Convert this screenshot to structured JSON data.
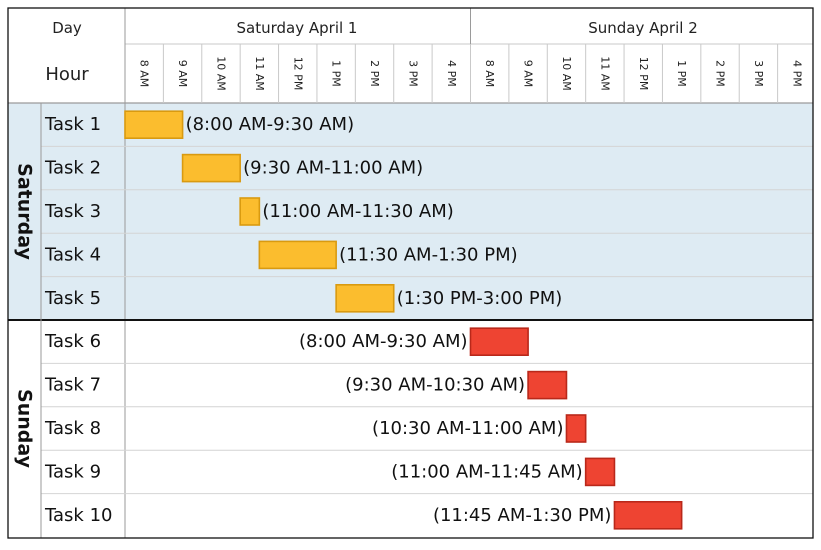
{
  "colors": {
    "saturday_bar": "#fbbd2e",
    "saturday_bar_border": "#d99a10",
    "sunday_bar": "#ee4432",
    "sunday_bar_border": "#b9281a",
    "saturday_band": "#deebf3",
    "grid": "#c9c9c9"
  },
  "chart_data": {
    "type": "bar",
    "header": {
      "day_label": "Day",
      "hour_label": "Hour",
      "days": [
        "Saturday April 1",
        "Sunday April 2"
      ],
      "hour_ticks": [
        "8 AM",
        "9 AM",
        "10 AM",
        "11 AM",
        "12 PM",
        "1 PM",
        "2 PM",
        "3 PM",
        "4 PM"
      ],
      "tick_hours": [
        8,
        9,
        10,
        11,
        12,
        13,
        14,
        15,
        16
      ]
    },
    "groups": [
      {
        "name": "Saturday",
        "day_index": 0,
        "tasks": [
          {
            "name": "Task 1",
            "start": 8.0,
            "end": 9.5,
            "label": "(8:00 AM-9:30 AM)"
          },
          {
            "name": "Task 2",
            "start": 9.5,
            "end": 11.0,
            "label": "(9:30 AM-11:00 AM)"
          },
          {
            "name": "Task 3",
            "start": 11.0,
            "end": 11.5,
            "label": "(11:00 AM-11:30 AM)"
          },
          {
            "name": "Task 4",
            "start": 11.5,
            "end": 13.5,
            "label": "(11:30 AM-1:30 PM)"
          },
          {
            "name": "Task 5",
            "start": 13.5,
            "end": 15.0,
            "label": "(1:30 PM-3:00 PM)"
          }
        ]
      },
      {
        "name": "Sunday",
        "day_index": 1,
        "tasks": [
          {
            "name": "Task 6",
            "start": 8.0,
            "end": 9.5,
            "label": "(8:00 AM-9:30 AM)"
          },
          {
            "name": "Task 7",
            "start": 9.5,
            "end": 10.5,
            "label": "(9:30 AM-10:30 AM)"
          },
          {
            "name": "Task 8",
            "start": 10.5,
            "end": 11.0,
            "label": "(10:30 AM-11:00 AM)"
          },
          {
            "name": "Task 9",
            "start": 11.0,
            "end": 11.75,
            "label": "(11:00 AM-11:45 AM)"
          },
          {
            "name": "Task 10",
            "start": 11.75,
            "end": 13.5,
            "label": "(11:45 AM-1:30 PM)"
          }
        ]
      }
    ]
  }
}
